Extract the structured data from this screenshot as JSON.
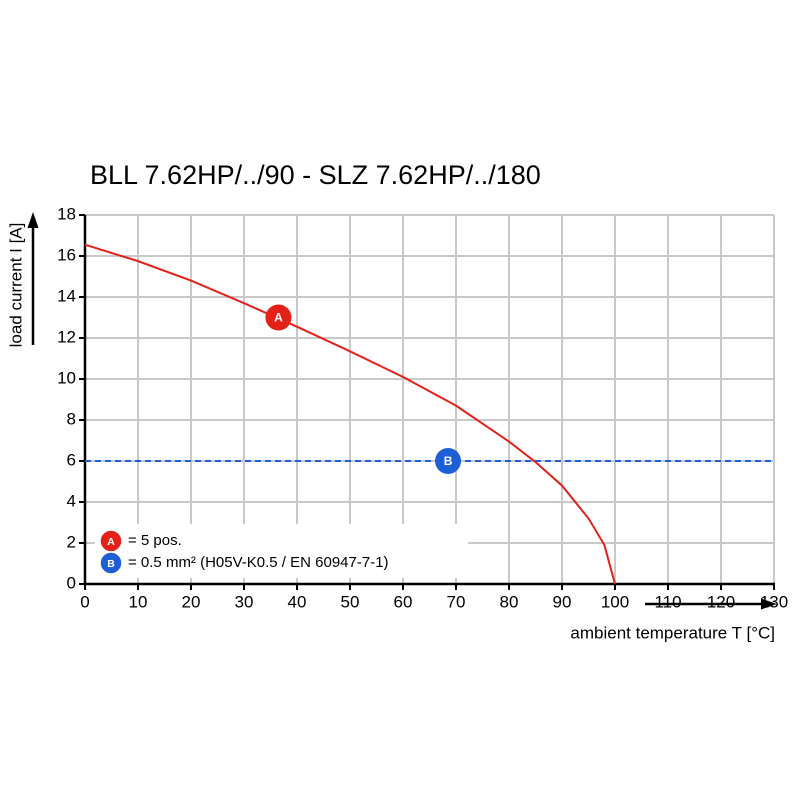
{
  "chart_data": {
    "type": "line",
    "title": "BLL 7.62HP/../90 - SLZ 7.62HP/../180",
    "x_label": "ambient temperature T [°C]",
    "y_label": "load current I [A]",
    "xlim": [
      0,
      130
    ],
    "xticks": [
      0,
      10,
      20,
      30,
      40,
      50,
      60,
      70,
      80,
      90,
      100,
      110,
      120,
      130
    ],
    "ylim": [
      0,
      18
    ],
    "yticks": [
      0,
      2,
      4,
      6,
      8,
      10,
      12,
      14,
      16,
      18
    ],
    "grid": true,
    "series": [
      {
        "name": "= 5 pos.",
        "marker": "A",
        "marker_at": [
          36.5,
          13
        ],
        "color": "#e32119",
        "dashed": false,
        "x": [
          0,
          10,
          20,
          30,
          40,
          50,
          60,
          70,
          80,
          85,
          90,
          95,
          98,
          100
        ],
        "values": [
          16.55,
          15.75,
          14.8,
          13.7,
          12.55,
          11.35,
          10.1,
          8.7,
          6.95,
          5.95,
          4.8,
          3.2,
          1.9,
          0
        ]
      },
      {
        "name": "= 0.5 mm² (H05V-K0.5 / EN 60947-7-1)",
        "marker": "B",
        "marker_at": [
          68.5,
          6
        ],
        "color": "#1f5fd6",
        "dashed": true,
        "x": [
          0,
          130
        ],
        "values": [
          6,
          6
        ]
      }
    ]
  }
}
